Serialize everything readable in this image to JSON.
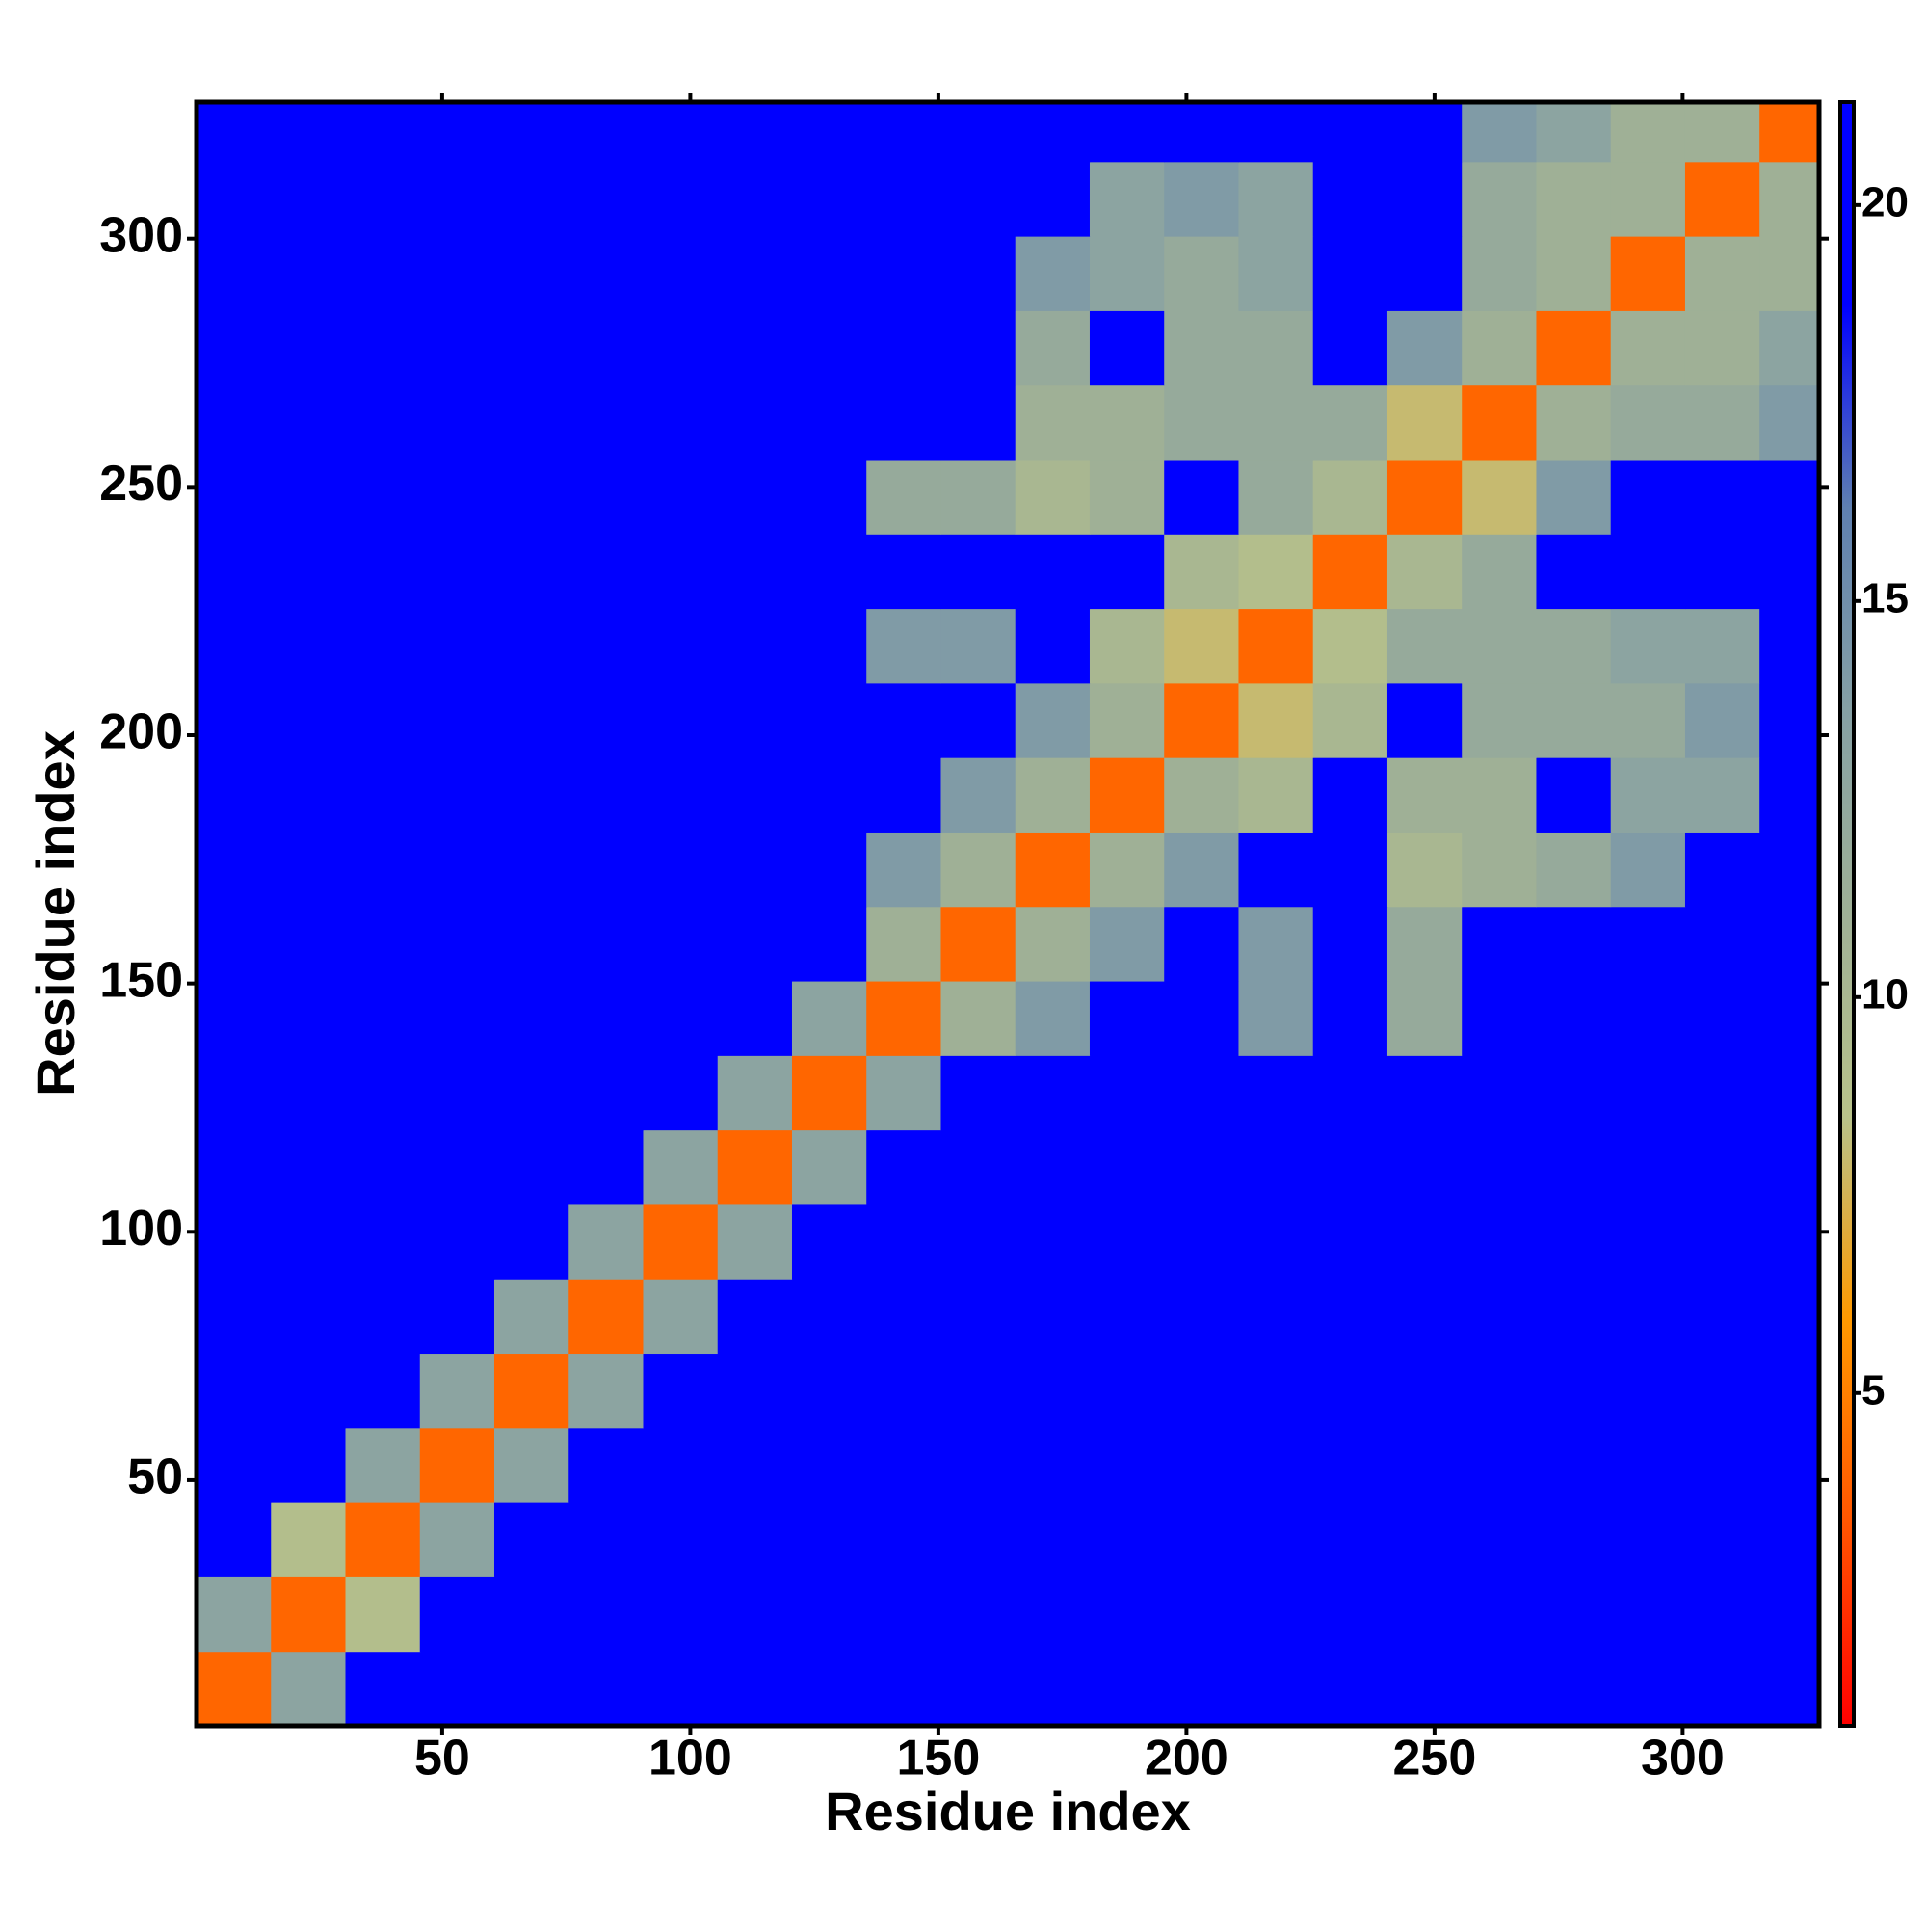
{
  "chart_data": {
    "type": "heatmap",
    "xlabel": "Residue index",
    "ylabel": "Residue index",
    "bins": [
      0.5,
      15.5,
      30.5,
      45.5,
      60.5,
      75.5,
      90.5,
      105.5,
      120.5,
      135.5,
      150.5,
      165.5,
      180.5,
      195.5,
      210.5,
      225.5,
      240.5,
      255.5,
      270.5,
      285.5,
      300.5,
      315.5,
      330.5
    ],
    "values": [
      [
        4,
        13,
        21,
        21,
        21,
        21,
        21,
        21,
        21,
        21,
        21,
        21,
        21,
        21,
        21,
        21,
        21,
        21,
        21,
        21,
        21,
        21
      ],
      [
        13,
        4,
        9,
        21,
        21,
        21,
        21,
        21,
        21,
        21,
        21,
        21,
        21,
        21,
        21,
        21,
        21,
        21,
        21,
        21,
        21,
        21
      ],
      [
        21,
        9,
        4,
        13,
        21,
        21,
        21,
        21,
        21,
        21,
        21,
        21,
        21,
        21,
        21,
        21,
        21,
        21,
        21,
        21,
        21,
        21
      ],
      [
        21,
        21,
        13,
        4,
        13,
        21,
        21,
        21,
        21,
        21,
        21,
        21,
        21,
        21,
        21,
        21,
        21,
        21,
        21,
        21,
        21,
        21
      ],
      [
        21,
        21,
        21,
        13,
        4,
        13,
        21,
        21,
        21,
        21,
        21,
        21,
        21,
        21,
        21,
        21,
        21,
        21,
        21,
        21,
        21,
        21
      ],
      [
        21,
        21,
        21,
        21,
        13,
        4,
        13,
        21,
        21,
        21,
        21,
        21,
        21,
        21,
        21,
        21,
        21,
        21,
        21,
        21,
        21,
        21
      ],
      [
        21,
        21,
        21,
        21,
        21,
        13,
        4,
        13,
        21,
        21,
        21,
        21,
        21,
        21,
        21,
        21,
        21,
        21,
        21,
        21,
        21,
        21
      ],
      [
        21,
        21,
        21,
        21,
        21,
        21,
        13,
        4,
        13,
        21,
        21,
        21,
        21,
        21,
        21,
        21,
        21,
        21,
        21,
        21,
        21,
        21
      ],
      [
        21,
        21,
        21,
        21,
        21,
        21,
        21,
        13,
        4,
        13,
        21,
        21,
        21,
        21,
        21,
        21,
        21,
        21,
        21,
        21,
        21,
        21
      ],
      [
        21,
        21,
        21,
        21,
        21,
        21,
        21,
        21,
        13,
        4,
        11,
        14,
        21,
        21,
        14,
        21,
        12,
        21,
        21,
        21,
        21,
        21
      ],
      [
        21,
        21,
        21,
        21,
        21,
        21,
        21,
        21,
        21,
        11,
        4,
        11,
        14,
        21,
        14,
        21,
        12,
        21,
        21,
        21,
        21,
        21
      ],
      [
        21,
        21,
        21,
        21,
        21,
        21,
        21,
        21,
        21,
        14,
        11,
        4,
        11,
        14,
        21,
        21,
        10,
        11,
        12,
        14,
        21,
        21
      ],
      [
        21,
        21,
        21,
        21,
        21,
        21,
        21,
        21,
        21,
        21,
        14,
        11,
        4,
        11,
        10,
        21,
        11,
        11,
        21,
        13,
        13,
        21
      ],
      [
        21,
        21,
        21,
        21,
        21,
        21,
        21,
        21,
        21,
        21,
        21,
        14,
        11,
        4,
        8,
        10,
        21,
        12,
        12,
        12,
        14,
        21
      ],
      [
        21,
        21,
        21,
        21,
        21,
        21,
        21,
        21,
        21,
        14,
        14,
        21,
        10,
        8,
        4,
        9,
        12,
        12,
        12,
        13,
        13,
        21
      ],
      [
        21,
        21,
        21,
        21,
        21,
        21,
        21,
        21,
        21,
        21,
        21,
        21,
        21,
        10,
        9,
        4,
        10,
        12,
        21,
        21,
        21,
        21
      ],
      [
        21,
        21,
        21,
        21,
        21,
        21,
        21,
        21,
        21,
        12,
        12,
        10,
        11,
        21,
        12,
        10,
        4,
        8,
        14,
        21,
        21,
        21
      ],
      [
        21,
        21,
        21,
        21,
        21,
        21,
        21,
        21,
        21,
        21,
        21,
        11,
        11,
        12,
        12,
        12,
        8,
        4,
        11,
        12,
        12,
        14
      ],
      [
        21,
        21,
        21,
        21,
        21,
        21,
        21,
        21,
        21,
        21,
        21,
        12,
        21,
        12,
        12,
        21,
        14,
        11,
        4,
        11,
        11,
        13
      ],
      [
        21,
        21,
        21,
        21,
        21,
        21,
        21,
        21,
        21,
        21,
        21,
        14,
        13,
        12,
        13,
        21,
        21,
        12,
        11,
        4,
        11,
        11
      ],
      [
        21,
        21,
        21,
        21,
        21,
        21,
        21,
        21,
        21,
        21,
        21,
        21,
        13,
        14,
        13,
        21,
        21,
        12,
        11,
        11,
        4,
        11
      ],
      [
        21,
        21,
        21,
        21,
        21,
        21,
        21,
        21,
        21,
        21,
        21,
        21,
        21,
        21,
        21,
        21,
        21,
        14,
        13,
        11,
        11,
        4
      ]
    ],
    "xlim": [
      0.5,
      327.5
    ],
    "ylim": [
      0.5,
      327.5
    ],
    "xticks": [
      50,
      100,
      150,
      200,
      250,
      300
    ],
    "yticks": [
      50,
      100,
      150,
      200,
      250,
      300
    ],
    "colorbar": {
      "lim": [
        0.8,
        21.3
      ],
      "ticks": [
        5,
        10,
        15,
        20
      ],
      "colors": [
        "#ff0000",
        "#ff5500",
        "#ff9900",
        "#b8c28a",
        "#9fb096",
        "#86a0a4",
        "#5f80b0",
        "#0000ff",
        "#0000ff"
      ]
    }
  }
}
